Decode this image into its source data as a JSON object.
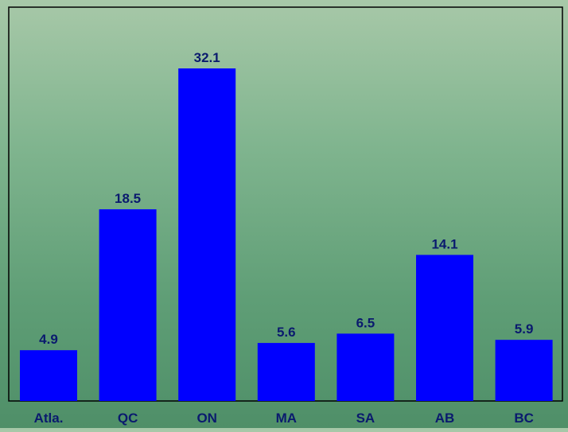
{
  "chart_data": {
    "type": "bar",
    "title": "",
    "xlabel": "",
    "ylabel": "",
    "categories": [
      "Atla.",
      "QC",
      "ON",
      "MA",
      "SA",
      "AB",
      "BC"
    ],
    "values": [
      4.9,
      18.5,
      32.1,
      5.6,
      6.5,
      14.1,
      5.9
    ],
    "data_labels": [
      "4.9",
      "18.5",
      "32.1",
      "5.6",
      "6.5",
      "14.1",
      "5.9"
    ],
    "ylim": [
      0,
      35
    ],
    "grid": false,
    "legend": "none",
    "colors": {
      "bar": "#0000ff",
      "label": "#0a1a6e",
      "axis": "#000000"
    }
  }
}
